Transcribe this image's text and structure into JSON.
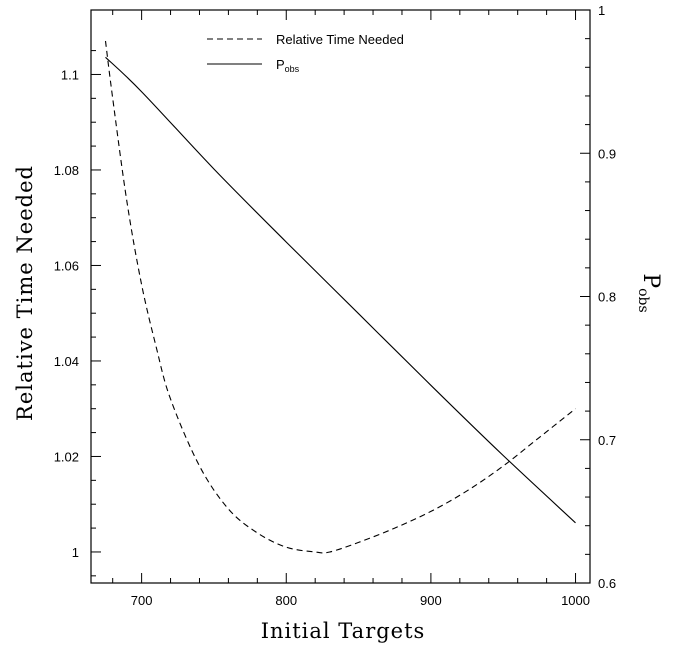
{
  "chart_data": {
    "type": "line",
    "xlabel": "Initial Targets",
    "ylabel_left": "Relative Time Needed",
    "ylabel_right": {
      "main": "P",
      "sub": "obs"
    },
    "xlim": [
      665,
      1010
    ],
    "ylim_left": [
      0.9935,
      1.1135
    ],
    "ylim_right": [
      0.6,
      1.0
    ],
    "x_ticks": [
      700,
      800,
      900,
      1000
    ],
    "x_tick_labels": [
      "700",
      "800",
      "900",
      "1000"
    ],
    "y_left_ticks": [
      1.0,
      1.02,
      1.04,
      1.06,
      1.08,
      1.1
    ],
    "y_left_tick_labels": [
      "1",
      "1.02",
      "1.04",
      "1.06",
      "1.08",
      "1.1"
    ],
    "y_right_ticks": [
      0.6,
      0.7,
      0.8,
      0.9,
      1.0
    ],
    "y_right_tick_labels": [
      "0.6",
      "0.7",
      "0.8",
      "0.9",
      "1"
    ],
    "legend_position": "top-center",
    "series": [
      {
        "name": "Relative Time Needed",
        "axis": "left",
        "style": "dashed",
        "x": [
          675,
          680,
          690,
          700,
          710,
          720,
          740,
          760,
          780,
          800,
          820,
          830,
          850,
          875,
          900,
          925,
          950,
          975,
          1000
        ],
        "y": [
          1.107,
          1.095,
          1.073,
          1.056,
          1.043,
          1.032,
          1.018,
          1.009,
          1.004,
          1.001,
          1.0,
          1.0,
          1.002,
          1.005,
          1.0085,
          1.0128,
          1.018,
          1.024,
          1.03
        ]
      },
      {
        "name": "P_obs",
        "legend_label": {
          "main": "P",
          "sub": "obs"
        },
        "axis": "right",
        "style": "solid",
        "x": [
          675,
          700,
          750,
          800,
          850,
          900,
          950,
          1000
        ],
        "y": [
          0.967,
          0.943,
          0.889,
          0.838,
          0.788,
          0.738,
          0.689,
          0.642
        ]
      }
    ]
  }
}
